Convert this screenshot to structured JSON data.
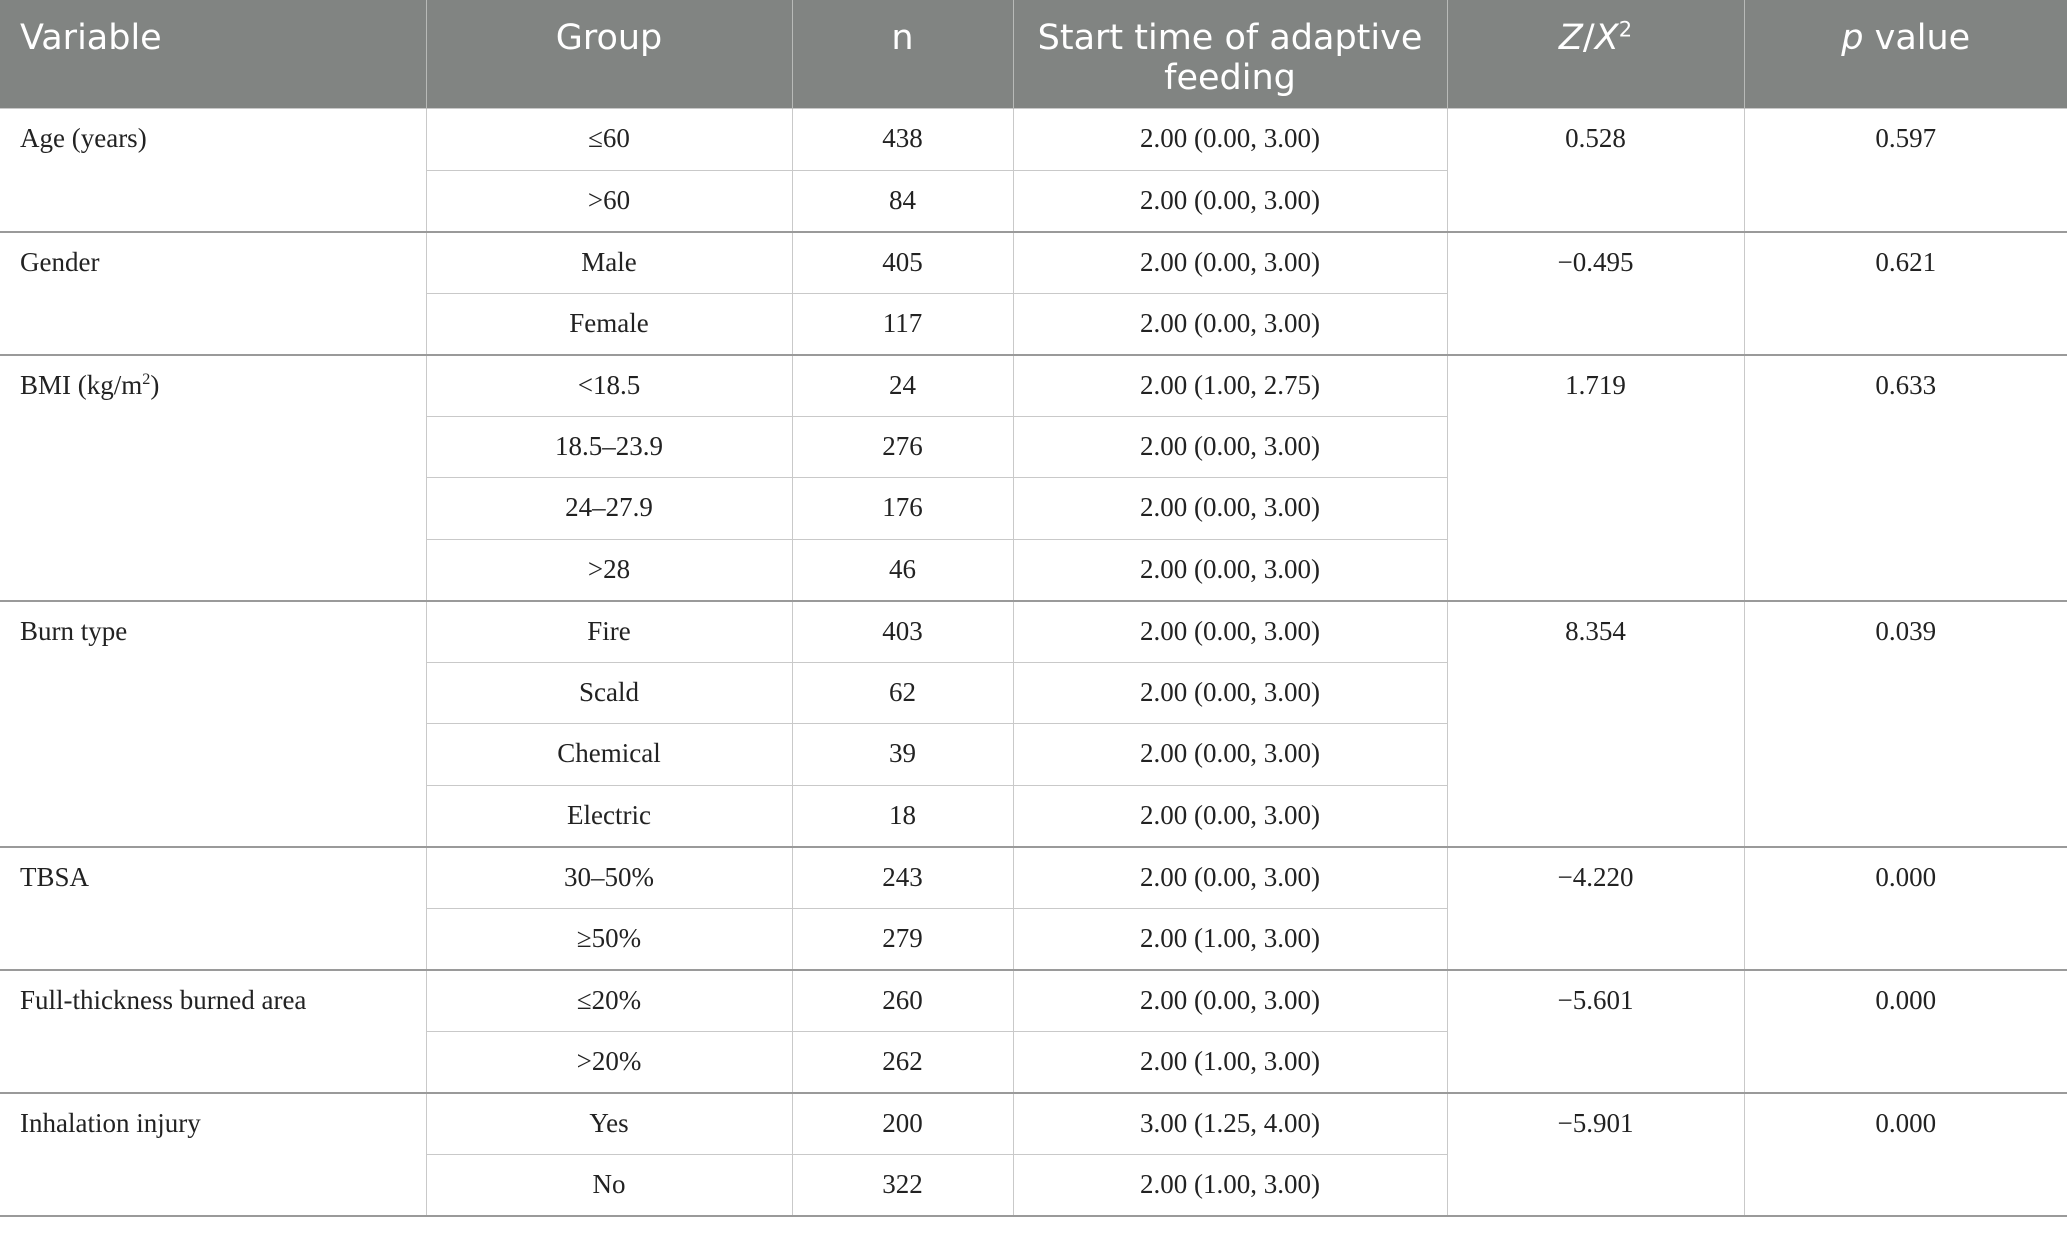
{
  "header": {
    "variable": "Variable",
    "group": "Group",
    "n": "n",
    "start_time": "Start time of adaptive feeding",
    "stat_z": "Z",
    "stat_sep": "/",
    "stat_x": "X",
    "stat_sup": "2",
    "p_italic": "p",
    "p_rest": " value"
  },
  "rows": [
    {
      "variable": "Age (years)",
      "var_sup": "",
      "var_after": "",
      "stat": "0.528",
      "p": "0.597",
      "groups": [
        {
          "group": "≤60",
          "n": "438",
          "start": "2.00 (0.00, 3.00)"
        },
        {
          "group": ">60",
          "n": "84",
          "start": "2.00 (0.00, 3.00)"
        }
      ]
    },
    {
      "variable": "Gender",
      "var_sup": "",
      "var_after": "",
      "stat": "−0.495",
      "p": "0.621",
      "groups": [
        {
          "group": "Male",
          "n": "405",
          "start": "2.00 (0.00, 3.00)"
        },
        {
          "group": "Female",
          "n": "117",
          "start": "2.00 (0.00, 3.00)"
        }
      ]
    },
    {
      "variable": "BMI (kg/m",
      "var_sup": "2",
      "var_after": ")",
      "stat": "1.719",
      "p": "0.633",
      "groups": [
        {
          "group": "<18.5",
          "n": "24",
          "start": "2.00 (1.00, 2.75)"
        },
        {
          "group": "18.5–23.9",
          "n": "276",
          "start": "2.00 (0.00, 3.00)"
        },
        {
          "group": "24–27.9",
          "n": "176",
          "start": "2.00 (0.00, 3.00)"
        },
        {
          "group": ">28",
          "n": "46",
          "start": "2.00 (0.00, 3.00)"
        }
      ]
    },
    {
      "variable": "Burn type",
      "var_sup": "",
      "var_after": "",
      "stat": "8.354",
      "p": "0.039",
      "groups": [
        {
          "group": "Fire",
          "n": "403",
          "start": "2.00 (0.00, 3.00)"
        },
        {
          "group": "Scald",
          "n": "62",
          "start": "2.00 (0.00, 3.00)"
        },
        {
          "group": "Chemical",
          "n": "39",
          "start": "2.00 (0.00, 3.00)"
        },
        {
          "group": "Electric",
          "n": "18",
          "start": "2.00 (0.00, 3.00)"
        }
      ]
    },
    {
      "variable": "TBSA",
      "var_sup": "",
      "var_after": "",
      "stat": "−4.220",
      "p": "0.000",
      "groups": [
        {
          "group": "30–50%",
          "n": "243",
          "start": "2.00 (0.00, 3.00)"
        },
        {
          "group": "≥50%",
          "n": "279",
          "start": "2.00 (1.00, 3.00)"
        }
      ]
    },
    {
      "variable": "Full-thickness burned area",
      "var_sup": "",
      "var_after": "",
      "stat": "−5.601",
      "p": "0.000",
      "groups": [
        {
          "group": "≤20%",
          "n": "260",
          "start": "2.00 (0.00, 3.00)"
        },
        {
          "group": ">20%",
          "n": "262",
          "start": "2.00 (1.00, 3.00)"
        }
      ]
    },
    {
      "variable": "Inhalation injury",
      "var_sup": "",
      "var_after": "",
      "stat": "−5.901",
      "p": "0.000",
      "groups": [
        {
          "group": "Yes",
          "n": "200",
          "start": "3.00 (1.25, 4.00)"
        },
        {
          "group": "No",
          "n": "322",
          "start": "2.00 (1.00, 3.00)"
        }
      ]
    }
  ]
}
